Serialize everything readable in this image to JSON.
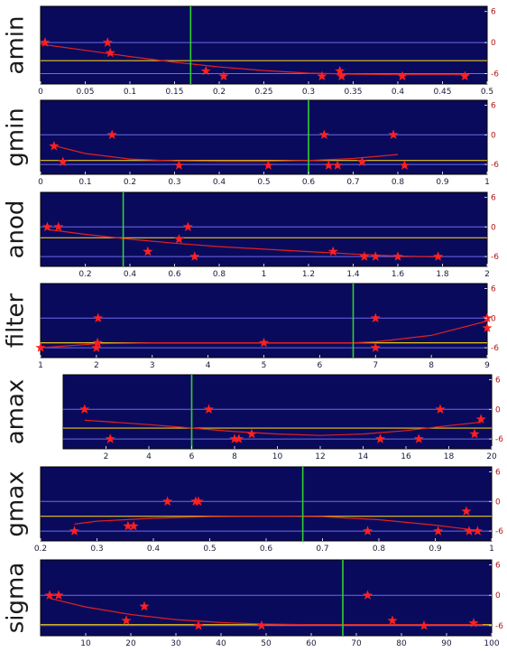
{
  "colors": {
    "panel_bg": "#0a0a5c",
    "ref_line": "#6a6ae8",
    "level_line": "#e8c61a",
    "marker_line": "#2fd12f",
    "fit_line": "#e02020",
    "star": "#ff2020",
    "ytick": "#b01818"
  },
  "chart_data": [
    {
      "type": "scatter",
      "ylabel": "amin",
      "xlim": [
        0,
        0.5
      ],
      "ylim": [
        -8,
        7
      ],
      "xticks": [
        {
          "v": 0,
          "label": "0"
        },
        {
          "v": 0.05,
          "label": "0.05"
        },
        {
          "v": 0.1,
          "label": "0.1"
        },
        {
          "v": 0.15,
          "label": "0.15"
        },
        {
          "v": 0.2,
          "label": "0.2"
        },
        {
          "v": 0.25,
          "label": "0.25"
        },
        {
          "v": 0.3,
          "label": "0.3"
        },
        {
          "v": 0.35,
          "label": "0.35"
        },
        {
          "v": 0.4,
          "label": "0.4"
        },
        {
          "v": 0.45,
          "label": "0.45"
        },
        {
          "v": 0.5,
          "label": "0.5"
        }
      ],
      "yticks": [
        {
          "v": 6,
          "label": "6"
        },
        {
          "v": 0,
          "label": "0"
        },
        {
          "v": -6,
          "label": "-6"
        }
      ],
      "points": [
        [
          0.005,
          0
        ],
        [
          0.075,
          0
        ],
        [
          0.078,
          -2
        ],
        [
          0.185,
          -5.5
        ],
        [
          0.205,
          -6.5
        ],
        [
          0.315,
          -6.5
        ],
        [
          0.335,
          -5.5
        ],
        [
          0.337,
          -6.5
        ],
        [
          0.405,
          -6.5
        ],
        [
          0.475,
          -6.5
        ]
      ],
      "fit": [
        [
          0,
          -0.3
        ],
        [
          0.05,
          -1.5
        ],
        [
          0.1,
          -2.7
        ],
        [
          0.15,
          -3.8
        ],
        [
          0.2,
          -4.7
        ],
        [
          0.25,
          -5.4
        ],
        [
          0.3,
          -5.9
        ],
        [
          0.35,
          -6.1
        ],
        [
          0.4,
          -6.2
        ],
        [
          0.45,
          -6.2
        ],
        [
          0.48,
          -6.2
        ]
      ],
      "vline": 0.168,
      "level": -3.5
    },
    {
      "type": "scatter",
      "ylabel": "gmin",
      "xlim": [
        0,
        1
      ],
      "ylim": [
        -8,
        7
      ],
      "xticks": [
        {
          "v": 0,
          "label": "0"
        },
        {
          "v": 0.1,
          "label": "0.1"
        },
        {
          "v": 0.2,
          "label": "0.2"
        },
        {
          "v": 0.3,
          "label": "0.3"
        },
        {
          "v": 0.4,
          "label": "0.4"
        },
        {
          "v": 0.5,
          "label": "0.5"
        },
        {
          "v": 0.6,
          "label": "0.6"
        },
        {
          "v": 0.7,
          "label": "0.7"
        },
        {
          "v": 0.8,
          "label": "0.8"
        },
        {
          "v": 0.9,
          "label": "0.9"
        },
        {
          "v": 1,
          "label": "1"
        }
      ],
      "yticks": [
        {
          "v": 6,
          "label": "6"
        },
        {
          "v": 0,
          "label": "0"
        },
        {
          "v": -6,
          "label": "-6"
        }
      ],
      "points": [
        [
          0.03,
          -2.3
        ],
        [
          0.05,
          -5.5
        ],
        [
          0.16,
          0
        ],
        [
          0.31,
          -6.2
        ],
        [
          0.51,
          -6.2
        ],
        [
          0.635,
          0
        ],
        [
          0.645,
          -6.2
        ],
        [
          0.665,
          -6.2
        ],
        [
          0.72,
          -5.5
        ],
        [
          0.79,
          0
        ],
        [
          0.815,
          -6.2
        ]
      ],
      "fit": [
        [
          0.03,
          -2.2
        ],
        [
          0.1,
          -3.8
        ],
        [
          0.2,
          -4.9
        ],
        [
          0.3,
          -5.3
        ],
        [
          0.4,
          -5.4
        ],
        [
          0.5,
          -5.4
        ],
        [
          0.6,
          -5.2
        ],
        [
          0.7,
          -4.8
        ],
        [
          0.8,
          -4.0
        ]
      ],
      "vline": 0.6,
      "level": -5.2
    },
    {
      "type": "scatter",
      "ylabel": "anod",
      "xlim": [
        0,
        2
      ],
      "ylim": [
        -8,
        7
      ],
      "xticks": [
        {
          "v": 0.2,
          "label": "0.2"
        },
        {
          "v": 0.4,
          "label": "0.4"
        },
        {
          "v": 0.6,
          "label": "0.6"
        },
        {
          "v": 0.8,
          "label": "0.8"
        },
        {
          "v": 1,
          "label": "1"
        },
        {
          "v": 1.2,
          "label": "1.2"
        },
        {
          "v": 1.4,
          "label": "1.4"
        },
        {
          "v": 1.6,
          "label": "1.6"
        },
        {
          "v": 1.8,
          "label": "1.8"
        },
        {
          "v": 2,
          "label": "2"
        }
      ],
      "yticks": [
        {
          "v": 6,
          "label": "6"
        },
        {
          "v": 0,
          "label": "0"
        },
        {
          "v": -6,
          "label": "-6"
        }
      ],
      "points": [
        [
          0.03,
          0
        ],
        [
          0.08,
          0
        ],
        [
          0.48,
          -5
        ],
        [
          0.62,
          -2.5
        ],
        [
          0.66,
          0
        ],
        [
          0.69,
          -6
        ],
        [
          1.31,
          -5
        ],
        [
          1.45,
          -6
        ],
        [
          1.5,
          -6
        ],
        [
          1.6,
          -6
        ],
        [
          1.78,
          -6
        ]
      ],
      "fit": [
        [
          0.03,
          -0.5
        ],
        [
          0.2,
          -1.5
        ],
        [
          0.4,
          -2.5
        ],
        [
          0.6,
          -3.3
        ],
        [
          0.8,
          -4.0
        ],
        [
          1.0,
          -4.5
        ],
        [
          1.2,
          -5.0
        ],
        [
          1.4,
          -5.5
        ],
        [
          1.6,
          -5.9
        ],
        [
          1.8,
          -6.1
        ]
      ],
      "vline": 0.37,
      "level": -2.2
    },
    {
      "type": "scatter",
      "ylabel": "filter",
      "xlim": [
        1,
        9
      ],
      "ylim": [
        -8,
        7
      ],
      "xticks": [
        {
          "v": 1,
          "label": "1"
        },
        {
          "v": 2,
          "label": "2"
        },
        {
          "v": 3,
          "label": "3"
        },
        {
          "v": 4,
          "label": "4"
        },
        {
          "v": 5,
          "label": "5"
        },
        {
          "v": 6,
          "label": "6"
        },
        {
          "v": 7,
          "label": "7"
        },
        {
          "v": 8,
          "label": "8"
        },
        {
          "v": 9,
          "label": "9"
        }
      ],
      "yticks": [
        {
          "v": 6,
          "label": "6"
        },
        {
          "v": 0,
          "label": "0"
        },
        {
          "v": -6,
          "label": "-6"
        }
      ],
      "points": [
        [
          1,
          -6
        ],
        [
          2,
          -6
        ],
        [
          2.02,
          -5
        ],
        [
          2.03,
          0
        ],
        [
          5,
          -5
        ],
        [
          7,
          0
        ],
        [
          7,
          -6
        ],
        [
          9,
          0
        ],
        [
          9,
          -2
        ]
      ],
      "fit": [
        [
          1,
          -6
        ],
        [
          2,
          -5.2
        ],
        [
          3,
          -5.0
        ],
        [
          4,
          -5.0
        ],
        [
          5,
          -5.0
        ],
        [
          6,
          -5.0
        ],
        [
          6.6,
          -5.0
        ],
        [
          7,
          -4.8
        ],
        [
          8,
          -3.5
        ],
        [
          9,
          -0.6
        ]
      ],
      "vline": 6.6,
      "level": -5.0
    },
    {
      "type": "scatter",
      "ylabel": "amax",
      "xlim": [
        0,
        20
      ],
      "ylim": [
        -8,
        7
      ],
      "xticks": [
        {
          "v": 2,
          "label": "2"
        },
        {
          "v": 4,
          "label": "4"
        },
        {
          "v": 6,
          "label": "6"
        },
        {
          "v": 8,
          "label": "8"
        },
        {
          "v": 10,
          "label": "10"
        },
        {
          "v": 12,
          "label": "12"
        },
        {
          "v": 14,
          "label": "14"
        },
        {
          "v": 16,
          "label": "16"
        },
        {
          "v": 18,
          "label": "18"
        },
        {
          "v": 20,
          "label": "20"
        }
      ],
      "yticks": [
        {
          "v": 6,
          "label": "6"
        },
        {
          "v": 0,
          "label": "0"
        },
        {
          "v": -6,
          "label": "-6"
        }
      ],
      "points": [
        [
          1,
          0
        ],
        [
          2.2,
          -6
        ],
        [
          6.8,
          0
        ],
        [
          8,
          -6
        ],
        [
          8.2,
          -6
        ],
        [
          8.8,
          -5
        ],
        [
          14.8,
          -6
        ],
        [
          16.6,
          -6
        ],
        [
          17.6,
          0
        ],
        [
          19.2,
          -5
        ],
        [
          19.5,
          -2
        ]
      ],
      "fit": [
        [
          1,
          -2.2
        ],
        [
          2,
          -2.5
        ],
        [
          4,
          -3.1
        ],
        [
          6,
          -3.8
        ],
        [
          8,
          -4.5
        ],
        [
          10,
          -5.0
        ],
        [
          12,
          -5.3
        ],
        [
          14,
          -5.0
        ],
        [
          16,
          -4.3
        ],
        [
          18,
          -3.3
        ],
        [
          19.5,
          -2.6
        ]
      ],
      "vline": 6,
      "level": -3.8
    },
    {
      "type": "scatter",
      "ylabel": "gmax",
      "xlim": [
        0.2,
        1
      ],
      "ylim": [
        -8,
        7
      ],
      "xticks": [
        {
          "v": 0.2,
          "label": "0.2"
        },
        {
          "v": 0.3,
          "label": "0.3"
        },
        {
          "v": 0.4,
          "label": "0.4"
        },
        {
          "v": 0.5,
          "label": "0.5"
        },
        {
          "v": 0.6,
          "label": "0.6"
        },
        {
          "v": 0.7,
          "label": "0.7"
        },
        {
          "v": 0.8,
          "label": "0.8"
        },
        {
          "v": 0.9,
          "label": "0.9"
        },
        {
          "v": 1,
          "label": "1"
        }
      ],
      "yticks": [
        {
          "v": 6,
          "label": "6"
        },
        {
          "v": 0,
          "label": "0"
        },
        {
          "v": -6,
          "label": "-6"
        }
      ],
      "points": [
        [
          0.26,
          -6
        ],
        [
          0.355,
          -5
        ],
        [
          0.365,
          -5
        ],
        [
          0.425,
          0
        ],
        [
          0.475,
          0
        ],
        [
          0.48,
          0
        ],
        [
          0.78,
          -6
        ],
        [
          0.905,
          -6
        ],
        [
          0.955,
          -2
        ],
        [
          0.96,
          -6
        ],
        [
          0.975,
          -6
        ]
      ],
      "fit": [
        [
          0.26,
          -4.6
        ],
        [
          0.3,
          -4.0
        ],
        [
          0.4,
          -3.4
        ],
        [
          0.5,
          -3.1
        ],
        [
          0.6,
          -3.0
        ],
        [
          0.7,
          -3.1
        ],
        [
          0.8,
          -3.7
        ],
        [
          0.9,
          -4.8
        ],
        [
          0.97,
          -5.8
        ]
      ],
      "vline": 0.665,
      "level": -3.0
    },
    {
      "type": "scatter",
      "ylabel": "sigma",
      "xlim": [
        0,
        100
      ],
      "ylim": [
        -8,
        7
      ],
      "xticks": [
        {
          "v": 10,
          "label": "10"
        },
        {
          "v": 20,
          "label": "20"
        },
        {
          "v": 30,
          "label": "30"
        },
        {
          "v": 40,
          "label": "40"
        },
        {
          "v": 50,
          "label": "50"
        },
        {
          "v": 60,
          "label": "60"
        },
        {
          "v": 70,
          "label": "70"
        },
        {
          "v": 80,
          "label": "80"
        },
        {
          "v": 90,
          "label": "90"
        },
        {
          "v": 100,
          "label": "100"
        }
      ],
      "yticks": [
        {
          "v": 6,
          "label": "6"
        },
        {
          "v": 0,
          "label": "0"
        },
        {
          "v": -6,
          "label": "-6"
        }
      ],
      "points": [
        [
          2,
          0
        ],
        [
          4,
          0
        ],
        [
          19,
          -5
        ],
        [
          23,
          -2.2
        ],
        [
          35,
          -6
        ],
        [
          49,
          -6
        ],
        [
          72.5,
          0
        ],
        [
          78,
          -5
        ],
        [
          85,
          -6
        ],
        [
          96,
          -5.5
        ]
      ],
      "fit": [
        [
          2,
          -0.6
        ],
        [
          10,
          -2.3
        ],
        [
          20,
          -3.8
        ],
        [
          30,
          -4.8
        ],
        [
          40,
          -5.4
        ],
        [
          50,
          -5.7
        ],
        [
          60,
          -5.8
        ],
        [
          70,
          -5.8
        ],
        [
          80,
          -5.8
        ],
        [
          90,
          -5.8
        ],
        [
          98,
          -5.8
        ]
      ],
      "vline": 67,
      "level": -5.8
    }
  ]
}
